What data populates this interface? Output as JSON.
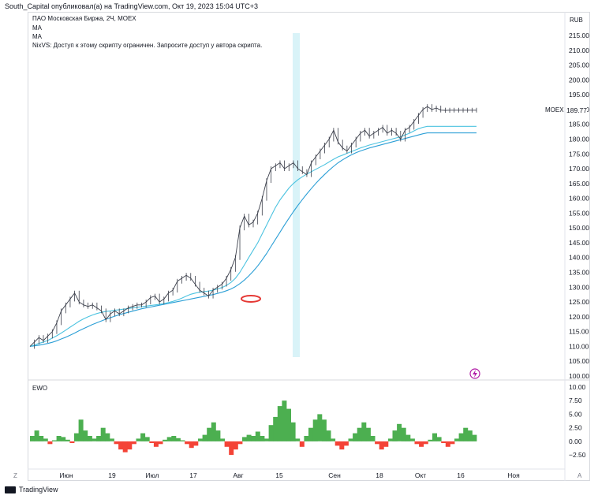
{
  "header": {
    "text": "South_Capital опубликовал(а) на TradingView.com, Окт 19, 2023 15:04 UTC+3"
  },
  "legend": {
    "title": "ПАО Московская Биржа, 2Ч, MOEX",
    "ma1": "MA",
    "ma2": "MA",
    "script_note": "NixVS: Доступ к этому скрипту ограничен. Запросите доступ у автора скрипта."
  },
  "currency_label": "RUB",
  "symbol_label": "MOEX",
  "last_price_label": "189.77",
  "ewo_label": "EWO",
  "corners": {
    "left": "Z",
    "right": "A"
  },
  "footer": {
    "brand": "TradingView"
  },
  "colors": {
    "price": "#3a3e4a",
    "ma_fast": "#4cc3e0",
    "ma_slow": "#2b9fd6",
    "highlight_band": "#d9f3f8",
    "marker": "#e53935",
    "ewo_positive": "#4caf50",
    "ewo_negative": "#f44336",
    "flash_icon": "#b01aa6"
  },
  "chart_data": [
    {
      "type": "line",
      "title": "ПАО Московская Биржа, 2Ч, MOEX",
      "ylim": [
        100,
        215
      ],
      "y_ticks": [
        "215.00",
        "210.00",
        "205.00",
        "200.00",
        "195.00",
        "190.00",
        "185.00",
        "180.00",
        "175.00",
        "170.00",
        "165.00",
        "160.00",
        "155.00",
        "150.00",
        "145.00",
        "140.00",
        "135.00",
        "130.00",
        "125.00",
        "120.00",
        "115.00",
        "110.00",
        "105.00",
        "100.00"
      ],
      "x_ticks": [
        "Июн",
        "19",
        "Июл",
        "17",
        "Авг",
        "15",
        "Сен",
        "18",
        "Окт",
        "16",
        "Ноя"
      ],
      "series": [
        {
          "role": "price",
          "x": [
            0,
            2,
            4,
            6,
            8,
            10,
            12,
            14,
            16,
            18,
            20,
            22,
            24,
            26,
            28,
            30,
            32,
            34,
            36,
            38,
            40,
            42,
            44,
            46,
            48,
            50,
            52,
            54,
            56,
            58,
            60,
            62,
            64,
            66,
            68,
            70,
            72,
            74,
            76,
            78,
            80,
            82,
            84,
            86,
            88,
            90,
            92,
            94,
            96,
            98,
            100,
            102,
            104,
            106,
            108,
            110,
            112,
            114,
            116,
            118,
            120,
            122,
            124,
            126,
            128,
            130,
            132,
            134,
            136,
            138,
            140,
            142,
            144,
            146,
            148,
            150,
            152,
            154,
            156,
            158,
            160,
            162,
            164,
            166,
            168,
            170,
            172,
            174,
            176,
            178,
            180,
            182,
            184,
            186,
            188,
            190,
            192,
            194,
            196,
            198,
            200
          ],
          "values": [
            110,
            111.5,
            113,
            112,
            113.5,
            115,
            118,
            122,
            124,
            126,
            128,
            125,
            124,
            123.5,
            124,
            123,
            122,
            119,
            121,
            122,
            121,
            122,
            123,
            123.5,
            124,
            124,
            125,
            126.5,
            127,
            125,
            126,
            128,
            129,
            132,
            133,
            134,
            133,
            131,
            129,
            128,
            127,
            129,
            130,
            131,
            133,
            136,
            140,
            150,
            154,
            151,
            152,
            155,
            160,
            166,
            170,
            171,
            172,
            170,
            171,
            172,
            170,
            169,
            168,
            172,
            174,
            176,
            178,
            180,
            183,
            179,
            177,
            176,
            178,
            180,
            182,
            183,
            181,
            182,
            183,
            184,
            182,
            183,
            182,
            180,
            183,
            184,
            186,
            188,
            190,
            191,
            190,
            190.5,
            189.8,
            189.7,
            189.77,
            189.77,
            189.77,
            189.77,
            189.77,
            189.77,
            189.77
          ]
        },
        {
          "role": "ma_fast",
          "values": [
            110,
            110.5,
            111,
            111.5,
            112,
            112.8,
            113.6,
            114.5,
            115.5,
            116.5,
            117.5,
            118.5,
            119.3,
            120,
            120.6,
            121.1,
            121.5,
            121.8,
            122,
            122.2,
            122.4,
            122.6,
            122.8,
            123,
            123.2,
            123.4,
            123.6,
            123.8,
            124,
            124.2,
            124.5,
            124.8,
            125.2,
            125.7,
            126.3,
            127,
            127.6,
            128,
            128.3,
            128.5,
            128.7,
            129,
            129.4,
            129.9,
            130.6,
            131.6,
            133,
            135,
            137.5,
            140,
            142.5,
            145,
            148,
            151,
            154,
            157,
            159.5,
            161.5,
            163.5,
            165,
            166.3,
            167.3,
            168.2,
            169,
            169.8,
            170.6,
            171.4,
            172.3,
            173.2,
            174,
            174.6,
            175.2,
            175.8,
            176.4,
            177,
            177.5,
            178,
            178.4,
            178.8,
            179.2,
            179.6,
            180,
            180.4,
            180.8,
            181.4,
            182,
            182.8,
            183.5,
            184,
            184.3,
            184.3,
            184.3,
            184.3,
            184.3,
            184.3,
            184.3,
            184.3,
            184.3,
            184.3,
            184.3,
            184.3
          ]
        },
        {
          "role": "ma_slow",
          "values": [
            110,
            110.2,
            110.4,
            110.7,
            111,
            111.4,
            111.9,
            112.5,
            113.1,
            113.8,
            114.5,
            115.3,
            116,
            116.7,
            117.4,
            118,
            118.6,
            119.2,
            119.7,
            120.2,
            120.7,
            121.1,
            121.5,
            121.9,
            122.3,
            122.7,
            123,
            123.3,
            123.6,
            123.9,
            124.2,
            124.5,
            124.8,
            125.1,
            125.4,
            125.7,
            126,
            126.3,
            126.6,
            126.9,
            127.2,
            127.5,
            127.9,
            128.3,
            128.8,
            129.4,
            130.2,
            131.2,
            132.4,
            133.8,
            135.4,
            137.2,
            139.2,
            141.4,
            143.8,
            146.2,
            148.6,
            151,
            153.3,
            155.5,
            157.6,
            159.6,
            161.5,
            163.3,
            165,
            166.6,
            168.1,
            169.5,
            170.8,
            172,
            173,
            173.9,
            174.7,
            175.4,
            176,
            176.5,
            177,
            177.4,
            177.8,
            178.2,
            178.6,
            179,
            179.4,
            179.8,
            180.2,
            180.6,
            181,
            181.4,
            181.8,
            182.1,
            182.1,
            182.1,
            182.1,
            182.1,
            182.1,
            182.1,
            182.1,
            182.1,
            182.1,
            182.1,
            182.1
          ]
        }
      ]
    },
    {
      "type": "bar",
      "title": "EWO",
      "ylim": [
        -3.5,
        10
      ],
      "y_ticks": [
        "10.00",
        "7.50",
        "5.00",
        "2.50",
        "0.00",
        "−2.50"
      ],
      "values": [
        1,
        2,
        1,
        0.5,
        -0.5,
        0.2,
        1,
        0.8,
        0.3,
        -0.3,
        1.5,
        4,
        2,
        1,
        0.5,
        1,
        2.5,
        1.5,
        0.5,
        -0.5,
        -1.5,
        -2,
        -1.5,
        -0.5,
        0.5,
        1.5,
        0.8,
        -0.3,
        -1,
        -0.5,
        0.3,
        0.8,
        1,
        0.6,
        0.2,
        -0.5,
        -1.2,
        -0.8,
        0.5,
        1.2,
        2.5,
        3.5,
        2,
        0.5,
        -1,
        -2.5,
        -1.5,
        -0.5,
        0.8,
        1.2,
        1,
        1.8,
        1,
        0.5,
        3,
        4.5,
        6.5,
        7.5,
        6,
        3.5,
        0.5,
        -1,
        1,
        2.5,
        4,
        5,
        4,
        2,
        0.5,
        -0.8,
        -1.5,
        -0.8,
        0.5,
        1.5,
        2.5,
        3.5,
        2.5,
        1,
        -0.5,
        -1.5,
        -1,
        0.5,
        2,
        3.2,
        2.5,
        1.2,
        0.5,
        -0.5,
        -1,
        -0.5,
        0.3,
        1.5,
        0.8,
        -0.3,
        -1,
        -0.5,
        0.5,
        1.5,
        2.5,
        2,
        1.2
      ]
    }
  ]
}
